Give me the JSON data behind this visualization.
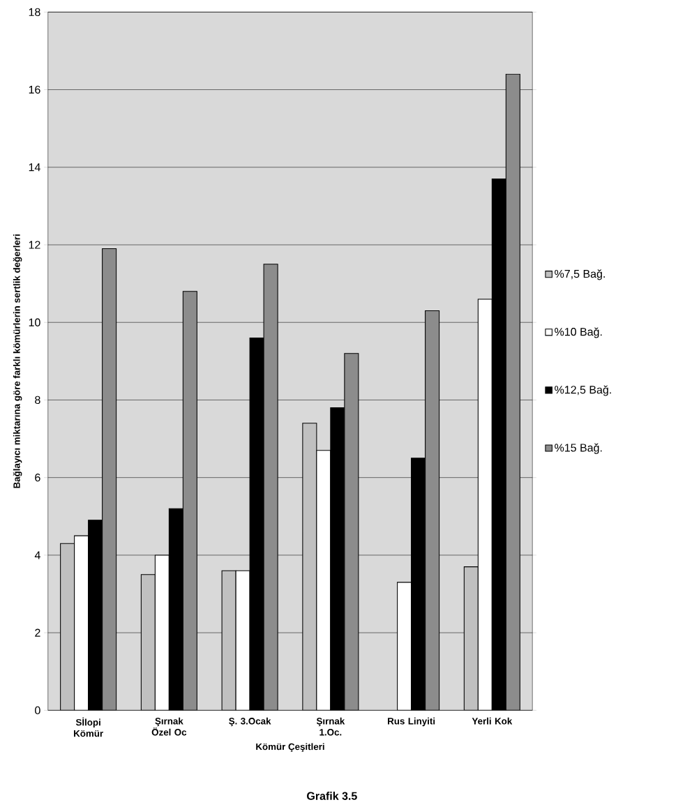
{
  "chart_data": {
    "type": "bar",
    "xlabel": "Kömür Çeşitleri",
    "ylabel": "Bağlayıcı miktarına göre farklı kömürlerin sertlik değerleri",
    "annotations": [
      "Grafik 3.5"
    ],
    "categories": [
      "Sİlopi Kömür",
      "Şırnak Özel Oc",
      "Ş. 3.Ocak",
      "Şırnak 1.Oc.",
      "Rus Linyiti",
      "Yerli Kok"
    ],
    "series": [
      {
        "name": "%7,5 Bağ.",
        "color": "#c0c0c0",
        "values": [
          4.3,
          3.5,
          3.6,
          7.4,
          null,
          3.7
        ]
      },
      {
        "name": "%10 Bağ.",
        "color": "#ffffff",
        "values": [
          4.5,
          4.0,
          3.6,
          6.7,
          3.3,
          10.6
        ]
      },
      {
        "name": "%12,5 Bağ.",
        "color": "#000000",
        "values": [
          4.9,
          5.2,
          9.6,
          7.8,
          6.5,
          13.7
        ]
      },
      {
        "name": "%15 Bağ.",
        "color": "#8c8c8c",
        "values": [
          11.9,
          10.8,
          11.5,
          9.2,
          10.3,
          16.4
        ]
      }
    ],
    "ylim": [
      0,
      18
    ],
    "yticks": [
      0,
      2,
      4,
      6,
      8,
      10,
      12,
      14,
      16,
      18
    ],
    "grid": "y",
    "legend": "right"
  }
}
